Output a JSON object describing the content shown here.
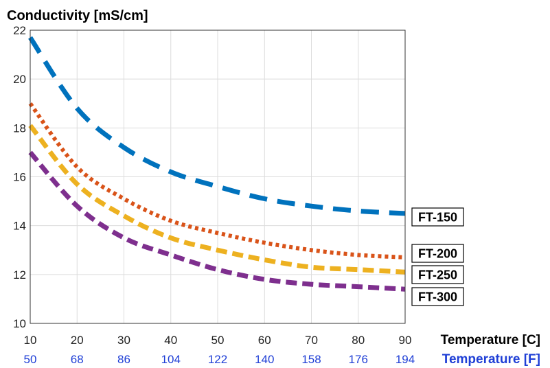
{
  "chart_data": {
    "type": "line",
    "title": "Conductivity [mS/cm]",
    "xlabel": "Temperature [C]",
    "xlabel_secondary": "Temperature [F]",
    "ylabel": "",
    "xlim": [
      10,
      90
    ],
    "ylim": [
      10,
      22
    ],
    "x_ticks": [
      10,
      20,
      30,
      40,
      50,
      60,
      70,
      80,
      90
    ],
    "x_ticks_secondary": [
      50,
      68,
      86,
      104,
      122,
      140,
      158,
      176,
      194
    ],
    "y_ticks": [
      10,
      12,
      14,
      16,
      18,
      20,
      22
    ],
    "grid": true,
    "legend_placement": "right",
    "x": [
      10,
      20,
      30,
      40,
      50,
      60,
      70,
      80,
      90
    ],
    "series": [
      {
        "name": "FT-150",
        "color": "#0072BD",
        "dash": "long-dash",
        "values": [
          21.7,
          18.8,
          17.2,
          16.2,
          15.6,
          15.1,
          14.8,
          14.6,
          14.5
        ]
      },
      {
        "name": "FT-200",
        "color": "#D95319",
        "dash": "dotted",
        "values": [
          19.0,
          16.4,
          15.1,
          14.2,
          13.7,
          13.3,
          13.0,
          12.8,
          12.7
        ]
      },
      {
        "name": "FT-250",
        "color": "#EDB120",
        "dash": "dashed",
        "values": [
          18.1,
          15.7,
          14.4,
          13.5,
          13.0,
          12.6,
          12.3,
          12.2,
          12.1
        ]
      },
      {
        "name": "FT-300",
        "color": "#7E2F8E",
        "dash": "dashed",
        "values": [
          17.0,
          14.8,
          13.5,
          12.8,
          12.2,
          11.8,
          11.6,
          11.5,
          11.4
        ]
      }
    ]
  }
}
